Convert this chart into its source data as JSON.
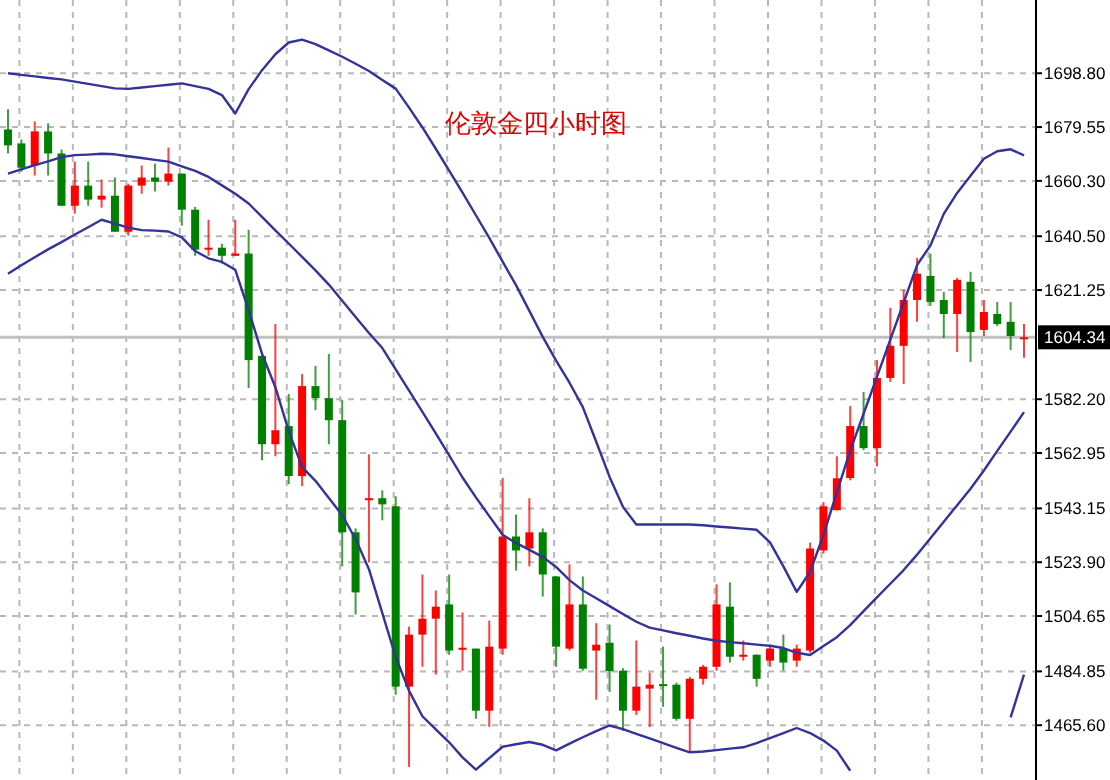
{
  "chart_data": {
    "type": "candlestick",
    "title": "伦敦金四小时图",
    "categories": [
      null,
      null,
      null,
      null,
      null,
      null,
      null,
      null,
      null,
      null,
      null,
      null,
      null,
      null,
      null,
      null,
      null,
      null,
      null,
      null,
      null,
      null,
      null,
      null,
      null,
      null,
      null,
      null,
      null,
      null,
      null,
      null,
      null,
      null,
      null,
      null,
      null,
      null,
      null,
      null,
      null,
      null,
      null,
      null,
      null,
      null,
      null,
      null,
      null,
      null,
      null,
      null,
      null,
      null,
      null,
      null,
      null,
      null,
      null,
      null,
      null,
      null,
      null,
      null,
      null,
      null,
      null,
      null,
      null,
      null,
      null,
      null,
      null,
      null,
      null,
      null,
      null
    ],
    "series": [
      {
        "ohlc": [
          [
            1678.7,
            1685.9,
            1670.1,
            1673.0
          ],
          [
            1673.7,
            1675.1,
            1663.6,
            1665.0
          ],
          [
            1665.8,
            1681.6,
            1662.2,
            1678.0
          ],
          [
            1678.0,
            1680.9,
            1662.2,
            1670.1
          ],
          [
            1670.1,
            1671.5,
            1651.4,
            1651.4
          ],
          [
            1651.4,
            1667.2,
            1648.6,
            1658.6
          ],
          [
            1658.6,
            1667.2,
            1651.4,
            1653.6
          ],
          [
            1653.6,
            1660.8,
            1650.7,
            1655.0
          ],
          [
            1655.0,
            1661.5,
            1642.1,
            1642.1
          ],
          [
            1642.1,
            1659.3,
            1640.7,
            1658.6
          ],
          [
            1658.6,
            1665.8,
            1655.7,
            1661.5
          ],
          [
            1661.5,
            1666.5,
            1656.5,
            1660.0
          ],
          [
            1660.0,
            1672.2,
            1658.6,
            1662.9
          ],
          [
            1662.9,
            1662.9,
            1644.3,
            1650.0
          ],
          [
            1650.0,
            1651.0,
            1633.5,
            1635.7
          ],
          [
            1635.7,
            1646.4,
            1633.5,
            1636.4
          ],
          [
            1636.4,
            1637.8,
            1630.7,
            1633.5
          ],
          [
            1633.5,
            1646.4,
            1633.5,
            1634.3
          ],
          [
            1634.3,
            1642.8,
            1586.2,
            1596.2
          ],
          [
            1597.7,
            1598.0,
            1560.4,
            1566.1
          ],
          [
            1566.1,
            1609.1,
            1561.8,
            1571.1
          ],
          [
            1572.6,
            1584.1,
            1551.8,
            1554.7
          ],
          [
            1554.7,
            1591.2,
            1551.1,
            1586.9
          ],
          [
            1586.9,
            1594.1,
            1578.3,
            1582.6
          ],
          [
            1582.6,
            1598.4,
            1566.1,
            1574.7
          ],
          [
            1574.7,
            1581.9,
            1522.4,
            1534.6
          ],
          [
            1534.6,
            1536.0,
            1505.2,
            1513.1
          ],
          [
            1546.6,
            1562.5,
            1523.8,
            1546.8
          ],
          [
            1546.8,
            1549.6,
            1538.9,
            1544.6
          ],
          [
            1543.9,
            1547.5,
            1476.5,
            1479.4
          ],
          [
            1479.4,
            1500.9,
            1450.7,
            1498.0
          ],
          [
            1498.0,
            1519.5,
            1486.5,
            1503.7
          ],
          [
            1503.7,
            1513.8,
            1483.7,
            1508.0
          ],
          [
            1508.8,
            1519.5,
            1490.8,
            1492.3
          ],
          [
            1492.6,
            1505.9,
            1485.1,
            1493.3
          ],
          [
            1493.0,
            1493.0,
            1467.9,
            1470.8
          ],
          [
            1470.8,
            1503.0,
            1465.0,
            1493.7
          ],
          [
            1493.0,
            1554.0,
            1490.8,
            1533.1
          ],
          [
            1533.1,
            1541.0,
            1520.9,
            1528.1
          ],
          [
            1528.8,
            1546.8,
            1522.4,
            1534.6
          ],
          [
            1534.6,
            1536.0,
            1511.6,
            1519.5
          ],
          [
            1518.8,
            1519.0,
            1486.5,
            1493.7
          ],
          [
            1493.0,
            1523.1,
            1492.3,
            1508.8
          ],
          [
            1508.8,
            1518.8,
            1485.1,
            1485.8
          ],
          [
            1492.3,
            1502.1,
            1474.7,
            1494.4
          ],
          [
            1495.1,
            1501.6,
            1477.5,
            1484.9
          ],
          [
            1485.1,
            1486.0,
            1463.6,
            1470.8
          ],
          [
            1470.8,
            1495.9,
            1469.3,
            1479.4
          ],
          [
            1478.7,
            1484.4,
            1465.0,
            1480.1
          ],
          [
            1480.3,
            1493.7,
            1472.2,
            1479.7
          ],
          [
            1480.1,
            1480.8,
            1467.2,
            1467.9
          ],
          [
            1467.9,
            1482.9,
            1455.7,
            1482.2
          ],
          [
            1482.2,
            1487.2,
            1480.1,
            1486.5
          ],
          [
            1486.5,
            1516.0,
            1485.1,
            1508.8
          ],
          [
            1508.0,
            1516.7,
            1488.0,
            1490.1
          ],
          [
            1490.1,
            1495.9,
            1488.7,
            1490.8
          ],
          [
            1490.8,
            1491.0,
            1479.4,
            1482.2
          ],
          [
            1488.7,
            1494.4,
            1486.5,
            1493.0
          ],
          [
            1493.0,
            1498.0,
            1485.1,
            1488.0
          ],
          [
            1488.7,
            1494.4,
            1486.5,
            1493.0
          ],
          [
            1492.3,
            1530.9,
            1491.5,
            1528.8
          ],
          [
            1528.1,
            1545.4,
            1527.0,
            1543.9
          ],
          [
            1542.5,
            1561.8,
            1542.5,
            1553.9
          ],
          [
            1554.0,
            1579.8,
            1553.2,
            1572.6
          ],
          [
            1572.6,
            1584.8,
            1564.0,
            1564.7
          ],
          [
            1564.7,
            1596.2,
            1558.2,
            1589.8
          ],
          [
            1589.8,
            1614.9,
            1588.4,
            1601.3
          ],
          [
            1601.3,
            1621.3,
            1587.6,
            1617.7
          ],
          [
            1617.7,
            1632.8,
            1609.9,
            1627.1
          ],
          [
            1626.3,
            1634.3,
            1615.6,
            1617.0
          ],
          [
            1617.7,
            1620.6,
            1604.1,
            1612.7
          ],
          [
            1612.7,
            1625.6,
            1599.1,
            1624.9
          ],
          [
            1624.2,
            1627.8,
            1595.5,
            1606.2
          ],
          [
            1607.0,
            1617.7,
            1604.8,
            1613.4
          ],
          [
            1612.7,
            1617.0,
            1608.4,
            1609.1
          ],
          [
            1609.9,
            1617.0,
            1599.8,
            1604.8
          ],
          [
            1604.1,
            1609.1,
            1597.0,
            1604.34
          ]
        ],
        "colors": [
          "#008000",
          "#008000",
          "#ff0000",
          "#008000",
          "#008000",
          "#ff0000",
          "#008000",
          "#ff0000",
          "#008000",
          "#ff0000",
          "#ff0000",
          "#008000",
          "#ff0000",
          "#008000",
          "#008000",
          "#ff0000",
          "#008000",
          "#ff0000",
          "#008000",
          "#008000",
          "#ff0000",
          "#008000",
          "#ff0000",
          "#008000",
          "#008000",
          "#008000",
          "#008000",
          "#ff0000",
          "#008000",
          "#008000",
          "#ff0000",
          "#ff0000",
          "#ff0000",
          "#008000",
          "#ff0000",
          "#008000",
          "#ff0000",
          "#ff0000",
          "#008000",
          "#ff0000",
          "#008000",
          "#008000",
          "#ff0000",
          "#008000",
          "#ff0000",
          "#008000",
          "#008000",
          "#ff0000",
          "#ff0000",
          "#008000",
          "#008000",
          "#ff0000",
          "#ff0000",
          "#ff0000",
          "#008000",
          "#ff0000",
          "#008000",
          "#ff0000",
          "#008000",
          "#ff0000",
          "#ff0000",
          "#ff0000",
          "#ff0000",
          "#ff0000",
          "#008000",
          "#ff0000",
          "#ff0000",
          "#ff0000",
          "#ff0000",
          "#008000",
          "#008000",
          "#ff0000",
          "#008000",
          "#ff0000",
          "#008000",
          "#008000",
          "#ff0000"
        ]
      },
      {
        "type": "line",
        "color": "#333399",
        "values": [
          1698.8,
          1698.2,
          1697.7,
          1697.1,
          1696.6,
          1695.8,
          1695.0,
          1694.2,
          1693.4,
          1693.2,
          1693.7,
          1694.2,
          1694.7,
          1695.2,
          1694.2,
          1693.2,
          1691.0,
          1684.4,
          1693.1,
          1699.9,
          1705.6,
          1709.8,
          1710.8,
          1709.2,
          1707.0,
          1704.7,
          1702.2,
          1699.6,
          1696.4,
          1693.3,
          1686.5,
          1679.4,
          1671.8,
          1664.0,
          1656.1,
          1648.0,
          1639.9,
          1631.4,
          1623.0,
          1613.8,
          1604.5,
          1596.0,
          1588.1,
          1579.4,
          1567.0,
          1554.4,
          1543.7,
          1537.4,
          1537.4,
          1537.4,
          1537.4,
          1537.4,
          1537.1,
          1536.7,
          1536.3,
          1535.9,
          1535.5,
          1531.0,
          1522.4,
          1513.3,
          1520.4,
          1533.7,
          1548.9,
          1563.8,
          1577.0,
          1590.2,
          1603.5,
          1616.8,
          1630.2,
          1637.2,
          1648.5,
          1656.0,
          1662.1,
          1668.2,
          1670.9,
          1671.6,
          1669.4
        ]
      },
      {
        "type": "line",
        "color": "#333399",
        "values": [
          1662.9,
          1664.4,
          1665.9,
          1667.3,
          1668.8,
          1669.5,
          1669.7,
          1670.0,
          1669.8,
          1669.1,
          1668.5,
          1667.8,
          1667.2,
          1665.5,
          1663.9,
          1661.7,
          1658.7,
          1655.7,
          1652.2,
          1647.4,
          1642.6,
          1637.9,
          1633.1,
          1628.3,
          1623.2,
          1617.4,
          1611.6,
          1605.9,
          1600.5,
          1592.9,
          1585.3,
          1577.7,
          1570.0,
          1562.1,
          1554.2,
          1547.1,
          1540.4,
          1533.7,
          1530.8,
          1528.3,
          1525.8,
          1522.2,
          1517.5,
          1513.8,
          1511.0,
          1508.2,
          1505.4,
          1502.6,
          1500.5,
          1499.5,
          1498.5,
          1497.6,
          1496.6,
          1495.8,
          1495.3,
          1494.9,
          1494.4,
          1494.0,
          1493.2,
          1491.5,
          1490.7,
          1493.9,
          1497.1,
          1501.4,
          1506.4,
          1511.3,
          1516.2,
          1521.1,
          1526.6,
          1532.5,
          1538.4,
          1544.3,
          1550.2,
          1556.7,
          1563.7,
          1570.6,
          1577.6
        ]
      },
      {
        "type": "line",
        "color": "#333399",
        "values": [
          1627.1,
          1630.1,
          1633.0,
          1635.8,
          1638.4,
          1641.1,
          1643.7,
          1646.4,
          1645.0,
          1643.6,
          1642.7,
          1642.5,
          1642.2,
          1640.1,
          1635.2,
          1632.6,
          1631.3,
          1628.5,
          1614.1,
          1598.5,
          1586.5,
          1570.8,
          1557.9,
          1553.0,
          1546.9,
          1540.7,
          1532.2,
          1521.4,
          1505.7,
          1490.0,
          1477.9,
          1468.8,
          1464.1,
          1459.5,
          1454.1,
          1449.7,
          1453.8,
          1457.9,
          1458.8,
          1459.6,
          1458.6,
          1456.6,
          1459.0,
          1461.3,
          1463.5,
          1465.5,
          1464.2,
          1462.5,
          1460.9,
          1459.2,
          1457.5,
          1455.9,
          1456.2,
          1456.7,
          1457.2,
          1457.7,
          1459.2,
          1461.0,
          1462.8,
          1464.6,
          1462.8,
          1460.1,
          1456.5,
          1449.3,
          null,
          null,
          null,
          null,
          null,
          null,
          null,
          null,
          null,
          null,
          null,
          1468.4,
          1483.7
        ]
      }
    ],
    "ylim": [
      1446,
      1725
    ],
    "yticks": [
      {
        "value": 1698.8,
        "label": "1698.80"
      },
      {
        "value": 1679.55,
        "label": "1679.55"
      },
      {
        "value": 1660.3,
        "label": "1660.30"
      },
      {
        "value": 1640.5,
        "label": "1640.50"
      },
      {
        "value": 1621.25,
        "label": "1621.25"
      },
      {
        "value": 1582.2,
        "label": "1582.20"
      },
      {
        "value": 1562.95,
        "label": "1562.95"
      },
      {
        "value": 1543.15,
        "label": "1543.15"
      },
      {
        "value": 1523.9,
        "label": "1523.90"
      },
      {
        "value": 1504.65,
        "label": "1504.65"
      },
      {
        "value": 1484.85,
        "label": "1484.85"
      },
      {
        "value": 1465.6,
        "label": "1465.60"
      }
    ],
    "ref_lines": [
      {
        "axis": "y",
        "value": 1604.34,
        "label": "1604.34",
        "color": "#c0c0c0"
      }
    ],
    "grid": true,
    "tick_labels": "y"
  }
}
